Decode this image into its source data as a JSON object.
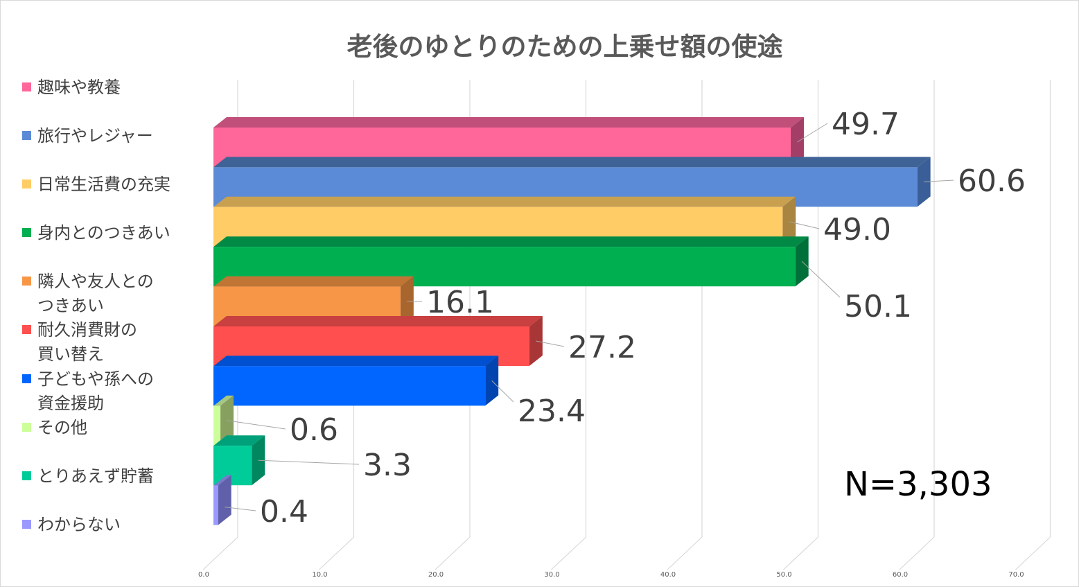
{
  "chart_data": {
    "type": "bar",
    "orientation": "horizontal",
    "style": "3d",
    "title": "老後のゆとりのための上乗せ額の使途",
    "categories": [
      "趣味や教養",
      "旅行やレジャー",
      "日常生活費の充実",
      "身内とのつきあい",
      "隣人や友人とのつきあい",
      "耐久消費財の買い替え",
      "子どもや孫への資金援助",
      "その他",
      "とりあえず貯蓄",
      "わからない"
    ],
    "legend_lines": [
      [
        "趣味や教養"
      ],
      [
        "旅行やレジャー"
      ],
      [
        "日常生活費の充実"
      ],
      [
        "身内とのつきあい"
      ],
      [
        "隣人や友人との",
        "つきあい"
      ],
      [
        "耐久消費財の",
        "買い替え"
      ],
      [
        "子どもや孫への",
        "資金援助"
      ],
      [
        "その他"
      ],
      [
        "とりあえず貯蓄"
      ],
      [
        "わからない"
      ]
    ],
    "values": [
      49.7,
      60.6,
      49.0,
      50.1,
      16.1,
      27.2,
      23.4,
      0.6,
      3.3,
      0.4
    ],
    "data_labels": [
      "49.7",
      "60.6",
      "49.0",
      "50.1",
      "16.1",
      "27.2",
      "23.4",
      "0.6",
      "3.3",
      "0.4"
    ],
    "colors": [
      "#FF6699",
      "#5B8BD6",
      "#FFCC66",
      "#00B050",
      "#F79646",
      "#FF4F4F",
      "#0066FF",
      "#CCFF99",
      "#00CC99",
      "#9999FF"
    ],
    "side_colors": [
      "#A33F66",
      "#3A5F98",
      "#A88540",
      "#00703A",
      "#A8652E",
      "#A83636",
      "#0044B0",
      "#87A060",
      "#00875F",
      "#6060AA"
    ],
    "top_colors": [
      "#C0507A",
      "#3F6396",
      "#C9A050",
      "#008A45",
      "#C07535",
      "#C84040",
      "#0050D0",
      "#A8C880",
      "#00A07A",
      "#7A7ACC"
    ],
    "x_ticks": [
      "0.0",
      "10.0",
      "20.0",
      "30.0",
      "40.0",
      "50.0",
      "60.0",
      "70.0"
    ],
    "xlim": [
      0,
      70
    ],
    "grid": true,
    "legend_position": "left",
    "annotation": "N=3,303"
  }
}
